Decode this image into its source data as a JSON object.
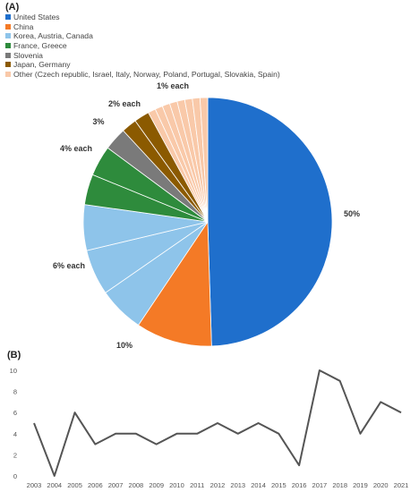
{
  "chart_data": [
    {
      "panel": "(A)",
      "type": "pie",
      "legend_position": "top-left",
      "slices": [
        {
          "label": "United States",
          "value": 50,
          "color": "#1F6FCC"
        },
        {
          "label": "China",
          "value": 10,
          "color": "#F47A26"
        },
        {
          "label": "Korea",
          "value": 6,
          "color": "#8EC4EA"
        },
        {
          "label": "Austria",
          "value": 6,
          "color": "#8EC4EA"
        },
        {
          "label": "Canada",
          "value": 6,
          "color": "#8EC4EA"
        },
        {
          "label": "France",
          "value": 4,
          "color": "#2E8B3C"
        },
        {
          "label": "Greece",
          "value": 4,
          "color": "#2E8B3C"
        },
        {
          "label": "Slovenia",
          "value": 3,
          "color": "#7A7A7A"
        },
        {
          "label": "Japan",
          "value": 2,
          "color": "#8B5A00"
        },
        {
          "label": "Germany",
          "value": 2,
          "color": "#8B5A00"
        },
        {
          "label": "Czech republic",
          "value": 1,
          "color": "#F9C9A9"
        },
        {
          "label": "Israel",
          "value": 1,
          "color": "#F9C9A9"
        },
        {
          "label": "Italy",
          "value": 1,
          "color": "#F9C9A9"
        },
        {
          "label": "Norway",
          "value": 1,
          "color": "#F9C9A9"
        },
        {
          "label": "Poland",
          "value": 1,
          "color": "#F9C9A9"
        },
        {
          "label": "Portugal",
          "value": 1,
          "color": "#F9C9A9"
        },
        {
          "label": "Slovakia",
          "value": 1,
          "color": "#F9C9A9"
        },
        {
          "label": "Spain",
          "value": 1,
          "color": "#F9C9A9"
        }
      ],
      "legend": [
        {
          "label": "United States",
          "color": "#1F6FCC"
        },
        {
          "label": "China",
          "color": "#F47A26"
        },
        {
          "label": "Korea, Austria, Canada",
          "color": "#8EC4EA"
        },
        {
          "label": "France, Greece",
          "color": "#2E8B3C"
        },
        {
          "label": "Slovenia",
          "color": "#7A7A7A"
        },
        {
          "label": "Japan, Germany",
          "color": "#8B5A00"
        },
        {
          "label": "Other (Czech republic, Israel, Italy, Norway, Poland, Portugal, Slovakia, Spain)",
          "color": "#F9C9A9"
        }
      ],
      "data_labels": [
        "50%",
        "10%",
        "6% each",
        "4% each",
        "3%",
        "2% each",
        "1% each"
      ]
    },
    {
      "panel": "(B)",
      "type": "line",
      "x": [
        "2003",
        "2004",
        "2005",
        "2006",
        "2007",
        "2008",
        "2009",
        "2010",
        "2011",
        "2012",
        "2013",
        "2014",
        "2015",
        "2016",
        "2017",
        "2018",
        "2019",
        "2020",
        "2021"
      ],
      "values": [
        5,
        0,
        6,
        3,
        4,
        4,
        3,
        4,
        4,
        5,
        4,
        5,
        4,
        1,
        10,
        9,
        4,
        7,
        6
      ],
      "ylim": [
        0,
        10
      ],
      "yticks": [
        0,
        2,
        4,
        6,
        8,
        10
      ],
      "grid": false,
      "line_color": "#555555"
    }
  ]
}
